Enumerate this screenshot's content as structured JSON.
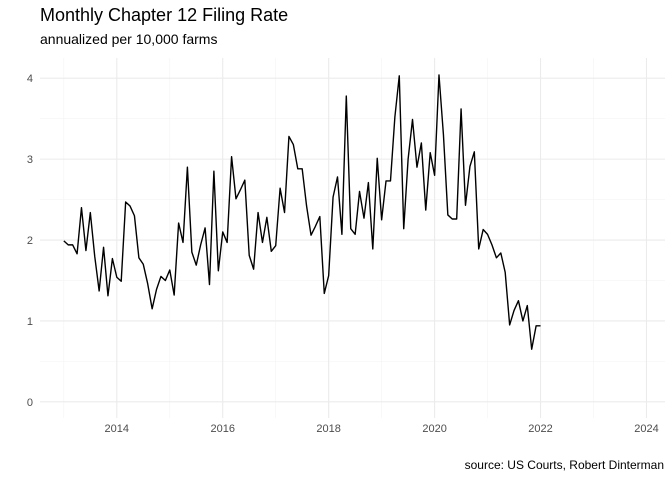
{
  "chart_data": {
    "type": "line",
    "title": "Monthly Chapter 12 Filing Rate",
    "subtitle": "annualized per 10,000 farms",
    "caption": "source: US Courts, Robert Dinterman",
    "xlabel": "",
    "ylabel": "",
    "xlim": [
      2012.55,
      2024.35
    ],
    "ylim": [
      -0.2,
      4.25
    ],
    "x_ticks": [
      2014,
      2016,
      2018,
      2020,
      2022,
      2024
    ],
    "y_ticks": [
      0,
      1,
      2,
      3,
      4
    ],
    "grid": true,
    "legend": "none",
    "series": [
      {
        "x": [
          2013.0,
          2013.083,
          2013.167,
          2013.25,
          2013.333,
          2013.417,
          2013.5,
          2013.583,
          2013.667,
          2013.75,
          2013.833,
          2013.917,
          2014.0,
          2014.083,
          2014.167,
          2014.25,
          2014.333,
          2014.417,
          2014.5,
          2014.583,
          2014.667,
          2014.75,
          2014.833,
          2014.917,
          2015.0,
          2015.083,
          2015.167,
          2015.25,
          2015.333,
          2015.417,
          2015.5,
          2015.583,
          2015.667,
          2015.75,
          2015.833,
          2015.917,
          2016.0,
          2016.083,
          2016.167,
          2016.25,
          2016.333,
          2016.417,
          2016.5,
          2016.583,
          2016.667,
          2016.75,
          2016.833,
          2016.917,
          2017.0,
          2017.083,
          2017.167,
          2017.25,
          2017.333,
          2017.417,
          2017.5,
          2017.583,
          2017.667,
          2017.75,
          2017.833,
          2017.917,
          2018.0,
          2018.083,
          2018.167,
          2018.25,
          2018.333,
          2018.417,
          2018.5,
          2018.583,
          2018.667,
          2018.75,
          2018.833,
          2018.917,
          2019.0,
          2019.083,
          2019.167,
          2019.25,
          2019.333,
          2019.417,
          2019.5,
          2019.583,
          2019.667,
          2019.75,
          2019.833,
          2019.917,
          2020.0,
          2020.083,
          2020.167,
          2020.25,
          2020.333,
          2020.417,
          2020.5,
          2020.583,
          2020.667,
          2020.75,
          2020.833,
          2020.917,
          2021.0,
          2021.083,
          2021.167,
          2021.25,
          2021.333,
          2021.417,
          2021.5,
          2021.583,
          2021.667,
          2021.75,
          2021.833,
          2021.917,
          2022.0
        ],
        "y": [
          1.99,
          1.94,
          1.94,
          1.83,
          2.4,
          1.87,
          2.34,
          1.8,
          1.37,
          1.91,
          1.31,
          1.77,
          1.54,
          1.49,
          2.47,
          2.42,
          2.3,
          1.78,
          1.7,
          1.46,
          1.15,
          1.39,
          1.55,
          1.5,
          1.63,
          1.32,
          2.21,
          1.97,
          2.9,
          1.85,
          1.69,
          1.94,
          2.15,
          1.45,
          2.85,
          1.62,
          2.1,
          1.97,
          3.03,
          2.51,
          2.62,
          2.74,
          1.81,
          1.64,
          2.34,
          1.97,
          2.28,
          1.86,
          1.93,
          2.64,
          2.34,
          3.28,
          3.18,
          2.88,
          2.88,
          2.42,
          2.06,
          2.17,
          2.29,
          1.34,
          1.56,
          2.53,
          2.78,
          2.07,
          3.78,
          2.14,
          2.07,
          2.6,
          2.27,
          2.71,
          1.89,
          3.01,
          2.25,
          2.73,
          2.73,
          3.52,
          4.03,
          2.14,
          3.0,
          3.49,
          2.9,
          3.2,
          2.37,
          3.08,
          2.8,
          4.04,
          3.3,
          2.31,
          2.26,
          2.26,
          3.62,
          2.43,
          2.91,
          3.09,
          1.89,
          2.13,
          2.07,
          1.94,
          1.78,
          1.84,
          1.6,
          0.95,
          1.13,
          1.25,
          1.0,
          1.19,
          0.65,
          0.94,
          0.94
        ]
      }
    ]
  }
}
